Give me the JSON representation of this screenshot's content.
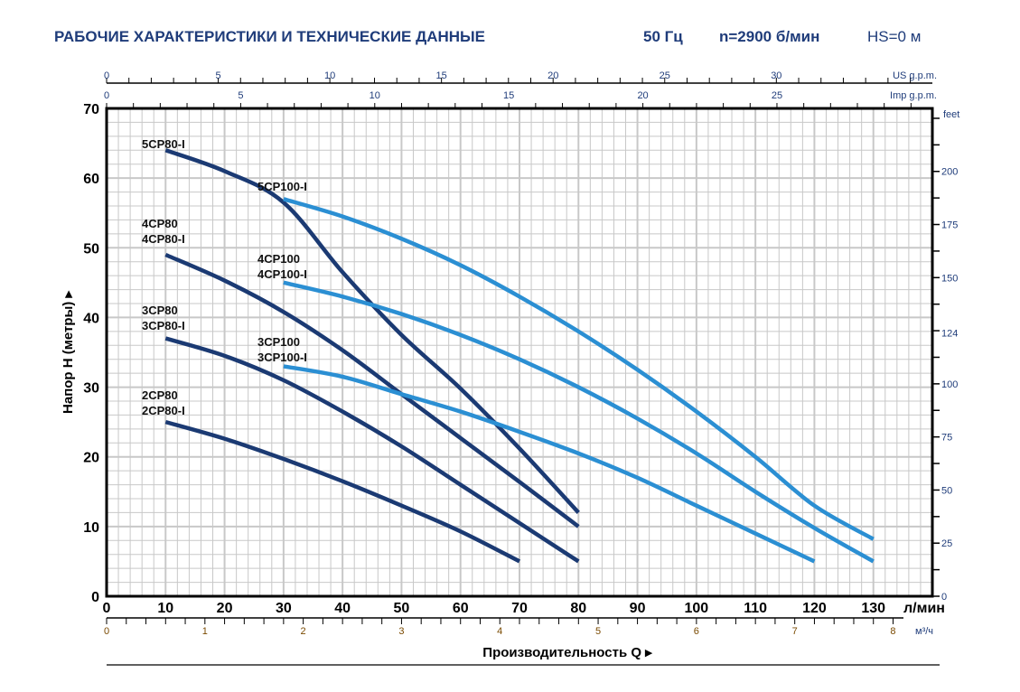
{
  "header": {
    "title": "РАБОЧИЕ ХАРАКТЕРИСТИКИ И ТЕХНИЧЕСКИЕ ДАННЫЕ",
    "frequency": "50 Гц",
    "speed": "n=2900 б/мин",
    "suction": "HS=0 м"
  },
  "colors": {
    "title": "#1f3c7a",
    "series_80": "#1b3a73",
    "series_100": "#2b8fd3",
    "grid": "#c8c8c8"
  },
  "chart_data": {
    "type": "line",
    "xlabel": "Производительность Q",
    "ylabel": "Напор H (метры)",
    "x_unit": "л/мин",
    "xlim": [
      0,
      140
    ],
    "ylim": [
      0,
      70
    ],
    "x_ticks": [
      0,
      10,
      20,
      30,
      40,
      50,
      60,
      70,
      80,
      90,
      100,
      110,
      120,
      130
    ],
    "y_ticks": [
      0,
      10,
      20,
      30,
      40,
      50,
      60,
      70
    ],
    "grid": true,
    "secondary_axes": {
      "us_gpm": {
        "label": "US g.p.m.",
        "ticks": [
          0,
          5,
          10,
          15,
          20,
          25,
          30
        ]
      },
      "imp_gpm": {
        "label": "Imp g.p.m.",
        "ticks": [
          0,
          5,
          10,
          15,
          20,
          25
        ]
      },
      "feet": {
        "label": "feet",
        "ticks": [
          0,
          25,
          50,
          75,
          100,
          124,
          150,
          175,
          200
        ]
      },
      "m3h": {
        "label": "м³/ч",
        "ticks": [
          0,
          1,
          2,
          3,
          4,
          5,
          6,
          7,
          8
        ]
      }
    },
    "series": [
      {
        "name": "5CP80-I",
        "labels": [
          "5CP80-I"
        ],
        "group": "80",
        "x": [
          10,
          20,
          30,
          40,
          50,
          60,
          70,
          80
        ],
        "y": [
          64,
          61,
          56.5,
          46.5,
          37.5,
          29.8,
          21.2,
          12
        ]
      },
      {
        "name": "4CP80 / 4CP80-I",
        "labels": [
          "4CP80",
          "4CP80-I"
        ],
        "group": "80",
        "x": [
          10,
          20,
          30,
          40,
          50,
          60,
          70,
          80
        ],
        "y": [
          49,
          45.3,
          40.8,
          35.3,
          29,
          22.7,
          16.4,
          10
        ]
      },
      {
        "name": "3CP80 / 3CP80-I",
        "labels": [
          "3CP80",
          "3CP80-I"
        ],
        "group": "80",
        "x": [
          10,
          20,
          30,
          40,
          50,
          60,
          70,
          80
        ],
        "y": [
          37,
          34.5,
          31,
          26.5,
          21.5,
          16,
          10.5,
          5
        ]
      },
      {
        "name": "2CP80 / 2CP80-I",
        "labels": [
          "2CP80",
          "2CP80-I"
        ],
        "group": "80",
        "x": [
          10,
          20,
          30,
          40,
          50,
          60,
          70
        ],
        "y": [
          25,
          22.6,
          19.7,
          16.5,
          13,
          9.3,
          5
        ]
      },
      {
        "name": "5CP100-I",
        "labels": [
          "5CP100-I"
        ],
        "group": "100",
        "x": [
          30,
          40,
          50,
          60,
          70,
          80,
          90,
          100,
          110,
          120,
          130
        ],
        "y": [
          57,
          54.5,
          51.3,
          47.5,
          43,
          38,
          32.5,
          26.5,
          20,
          13,
          8.2
        ]
      },
      {
        "name": "4CP100 / 4CP100-I",
        "labels": [
          "4CP100",
          "4CP100-I"
        ],
        "group": "100",
        "x": [
          30,
          40,
          50,
          60,
          70,
          80,
          90,
          100,
          110,
          120,
          130
        ],
        "y": [
          45,
          43,
          40.5,
          37.5,
          34,
          30,
          25.5,
          20.5,
          15,
          9.8,
          5
        ]
      },
      {
        "name": "3CP100 / 3CP100-I",
        "labels": [
          "3CP100",
          "3CP100-I"
        ],
        "group": "100",
        "x": [
          30,
          40,
          50,
          60,
          70,
          80,
          90,
          100,
          110,
          120
        ],
        "y": [
          33,
          31.5,
          29,
          26.5,
          23.6,
          20.5,
          17,
          13,
          9,
          5
        ]
      }
    ]
  }
}
